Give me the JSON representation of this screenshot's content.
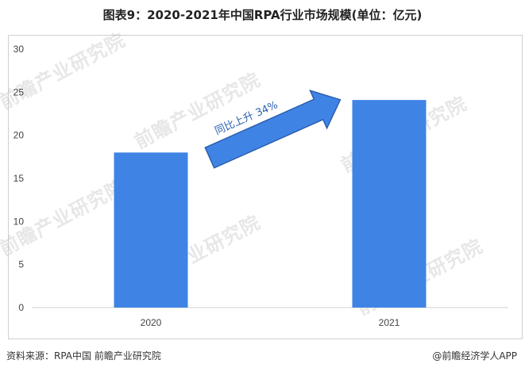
{
  "title": "图表9：2020-2021年中国RPA行业市场规模(单位：亿元)",
  "chart_data": {
    "type": "bar",
    "categories": [
      "2020",
      "2021"
    ],
    "values": [
      18,
      24.1
    ],
    "ylim": [
      0,
      30
    ],
    "yticks": [
      0,
      5,
      10,
      15,
      20,
      25,
      30
    ],
    "grid": false,
    "bar_color": "#3f84e5",
    "annotation": "同比上升 34%"
  },
  "watermark": "前瞻产业研究院",
  "source": "资料来源：RPA中国 前瞻产业研究院",
  "brand": "@前瞻经济学人APP"
}
